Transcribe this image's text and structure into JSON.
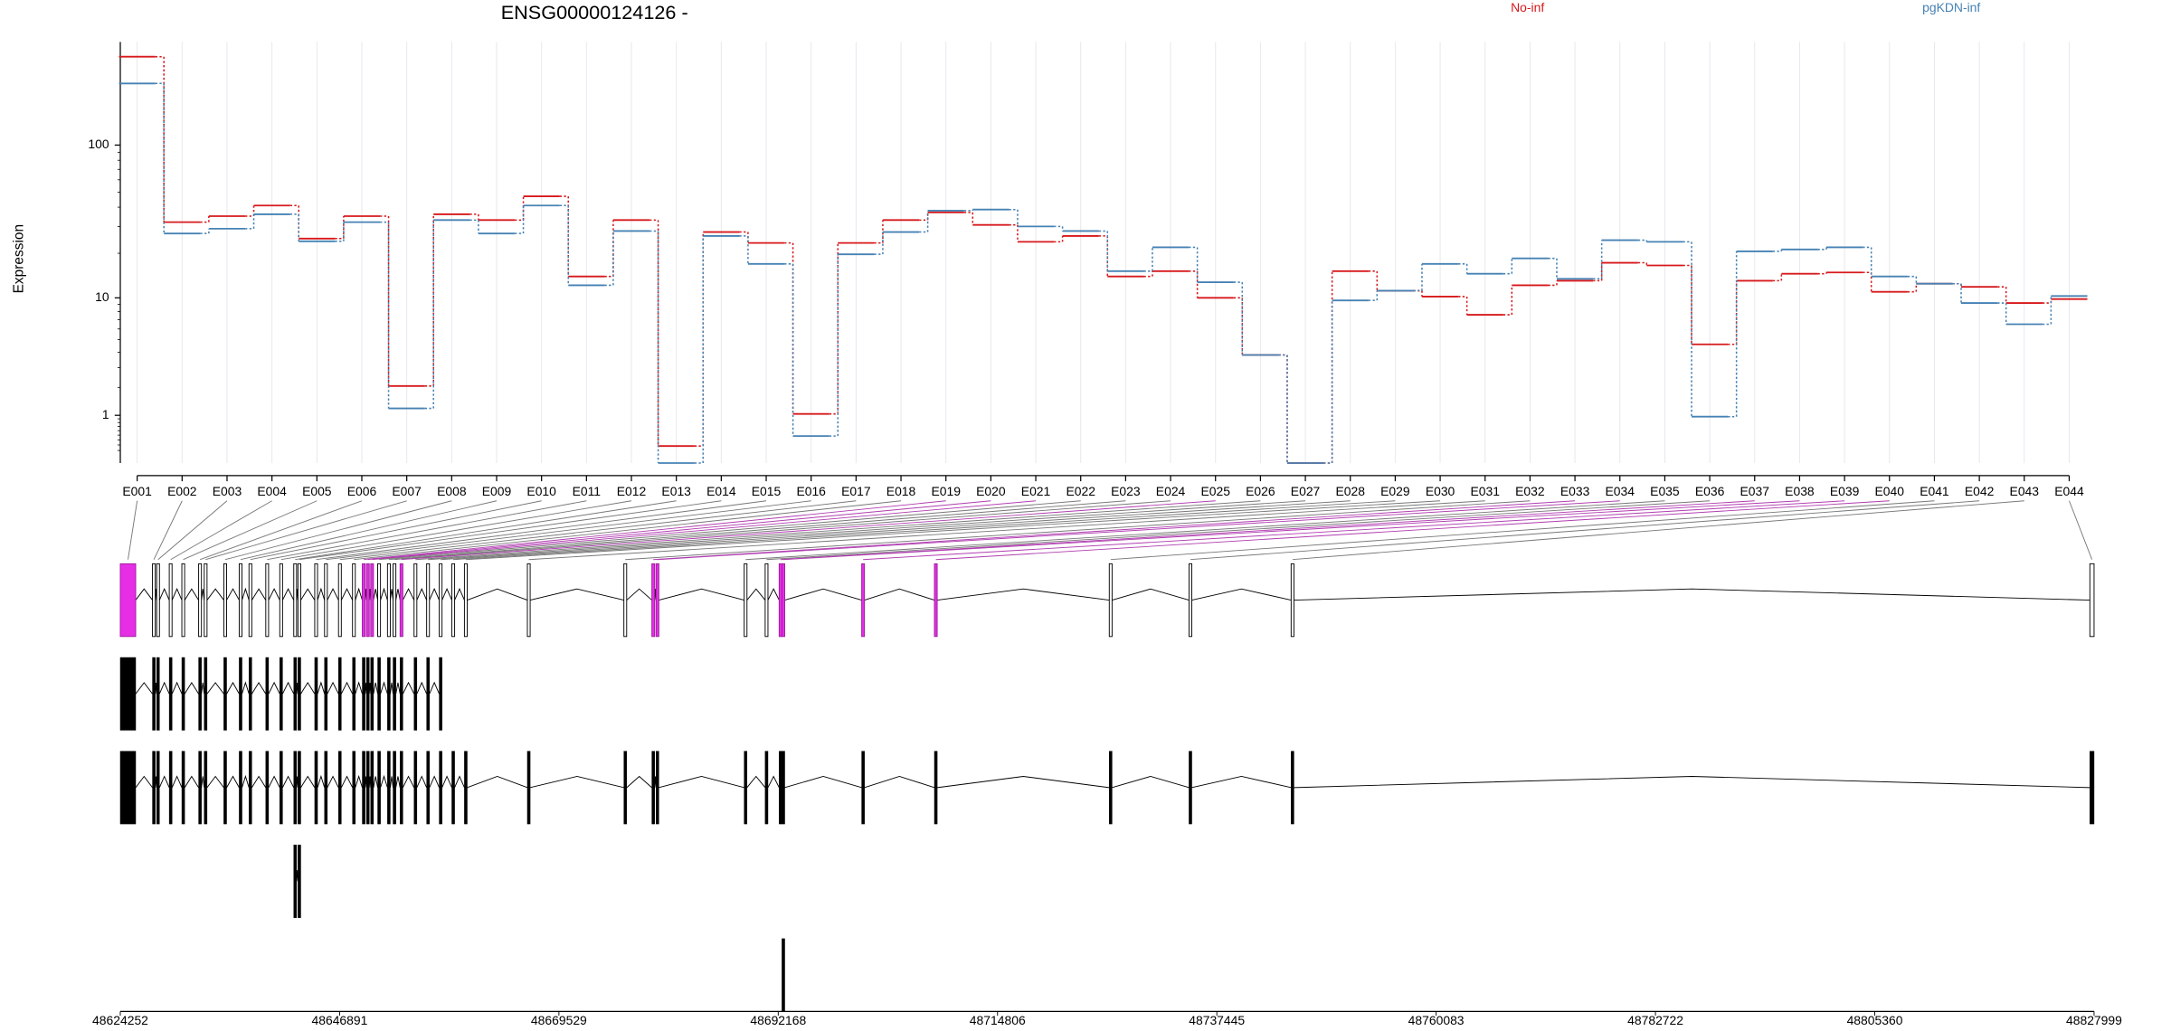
{
  "chart_data": {
    "type": "line",
    "title": "ENSG00000124126 -",
    "ylabel": "Expression",
    "categories": [
      "E001",
      "E002",
      "E003",
      "E004",
      "E005",
      "E006",
      "E007",
      "E008",
      "E009",
      "E010",
      "E011",
      "E012",
      "E013",
      "E014",
      "E015",
      "E016",
      "E017",
      "E018",
      "E019",
      "E020",
      "E021",
      "E022",
      "E023",
      "E024",
      "E025",
      "E026",
      "E027",
      "E028",
      "E029",
      "E030",
      "E031",
      "E032",
      "E033",
      "E034",
      "E035",
      "E036",
      "E037",
      "E038",
      "E039",
      "E040",
      "E041",
      "E042",
      "E043",
      "E044"
    ],
    "series": [
      {
        "name": "No-inf",
        "color": "#d7191c",
        "values": [
          363,
          32,
          35,
          41,
          25,
          35,
          2.06,
          36,
          33,
          47,
          14,
          33,
          0.28,
          27.6,
          23.4,
          1.04,
          23.4,
          33,
          37,
          30.7,
          23.8,
          26,
          14,
          15.2,
          10,
          3.8,
          0,
          15.2,
          11.2,
          10.2,
          7.6,
          12.2,
          13.1,
          17.3,
          16.6,
          4.6,
          13.1,
          14.6,
          14.9,
          11,
          12.5,
          11.9,
          9.2,
          9.8
        ]
      },
      {
        "name": "pgKDN-inf",
        "color": "#4682b4",
        "values": [
          246,
          27,
          29,
          36,
          24,
          32,
          1.21,
          33,
          27,
          41,
          12.2,
          28,
          0,
          26,
          17,
          0.48,
          19.7,
          27.6,
          38,
          38.6,
          30,
          28,
          15.2,
          21.9,
          12.8,
          3.8,
          0,
          9.6,
          11.2,
          17,
          14.6,
          18.5,
          13.5,
          24.4,
          23.8,
          0.96,
          20.6,
          21.2,
          21.9,
          14,
          12.5,
          9.2,
          6.5,
          10.3
        ]
      }
    ],
    "ylim": [
      0,
      450
    ],
    "yticks": [
      1,
      10,
      100
    ],
    "yscale": "log1p",
    "grid": true,
    "genome_lim": [
      48624252,
      48827999
    ],
    "genome_ticks": [
      48624252,
      48646891,
      48669529,
      48692168,
      48714806,
      48737445,
      48760083,
      48782722,
      48805360,
      48827999
    ]
  }
}
